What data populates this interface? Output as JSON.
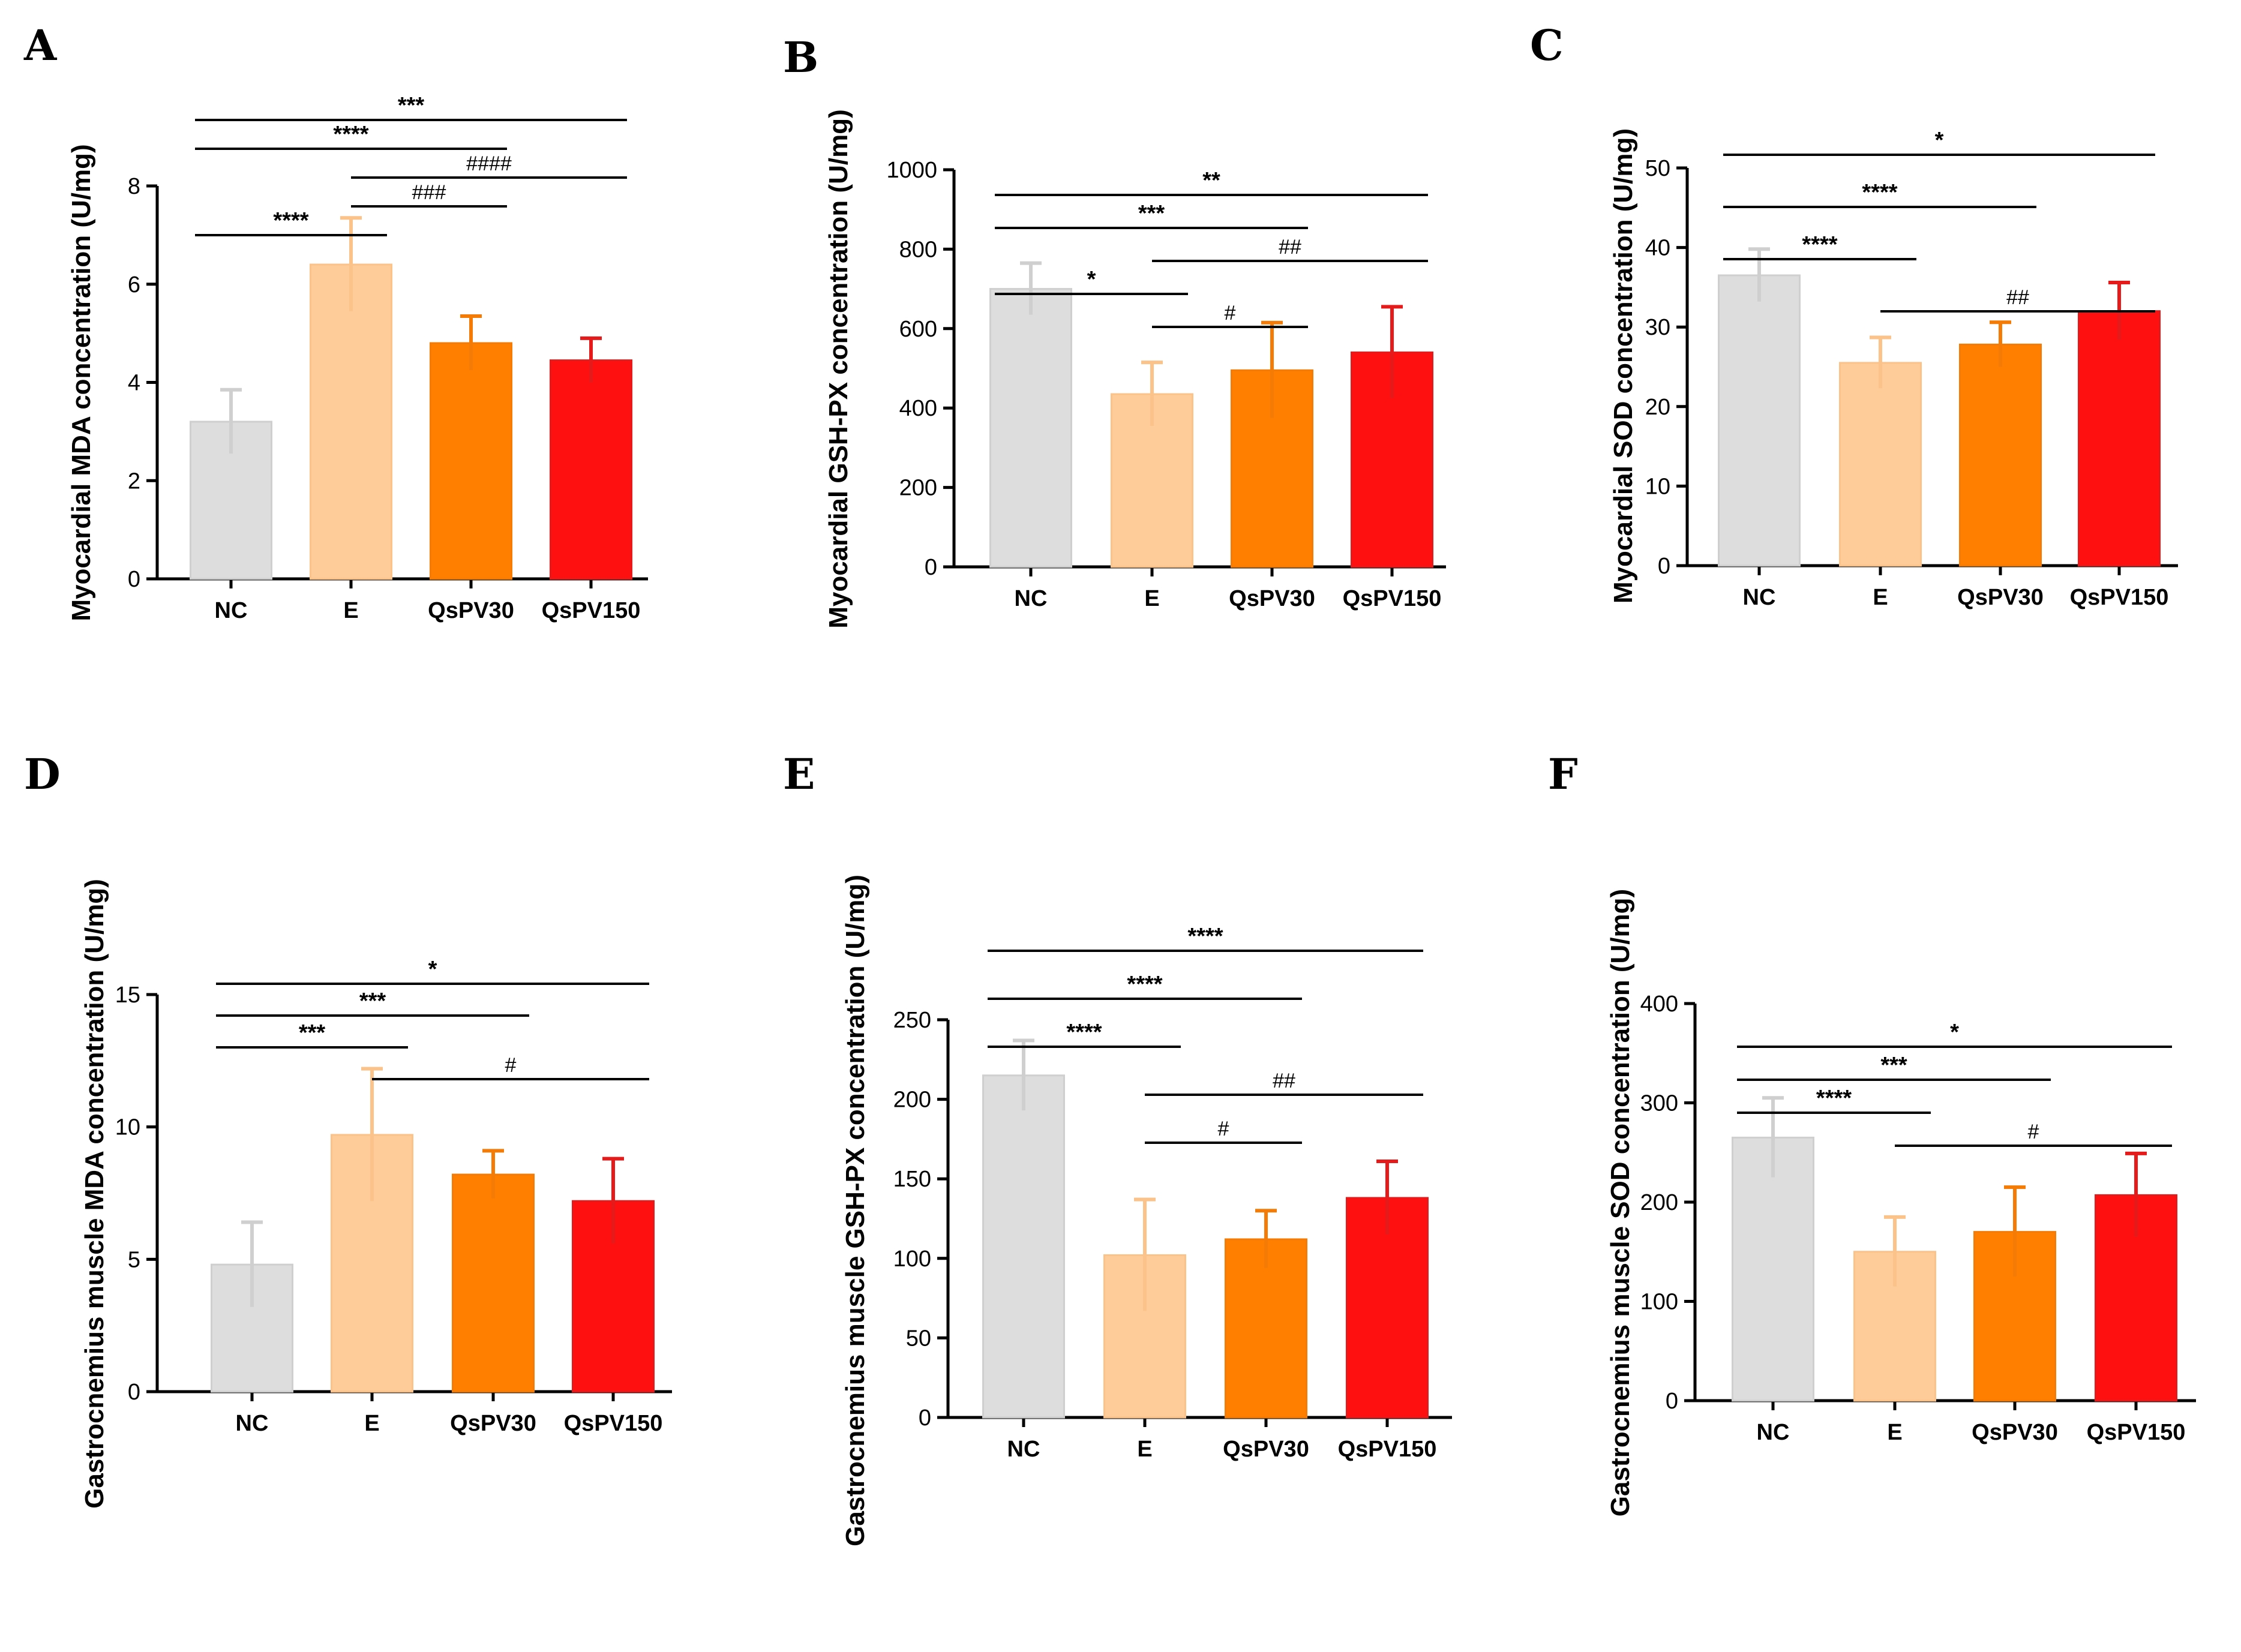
{
  "colors": {
    "NC": "#dddddd",
    "NC_err": "#cfcfcf",
    "E": "#fdcc99",
    "E_err": "#fbc28a",
    "QsPV30": "#ff7f00",
    "QsPV30_err": "#f47b05",
    "QsPV150": "#ff1010",
    "QsPV150_err": "#e51b1b"
  },
  "chart_data": [
    {
      "panel": "A",
      "type": "bar",
      "categories": [
        "NC",
        "E",
        "QsPV30",
        "QsPV150"
      ],
      "values": [
        3.2,
        6.4,
        4.8,
        4.45
      ],
      "errors": [
        0.65,
        0.95,
        0.55,
        0.45
      ],
      "ylabel": "Myocardial MDA concentration (U/mg)",
      "ylim": [
        0,
        8
      ],
      "yticks": [
        0,
        2,
        4,
        6,
        8
      ],
      "comparisons": [
        {
          "from": 0,
          "to": 1,
          "label": "****",
          "kind": "star"
        },
        {
          "from": 1,
          "to": 2,
          "label": "###",
          "kind": "hash"
        },
        {
          "from": 1,
          "to": 3,
          "label": "####",
          "kind": "hash"
        },
        {
          "from": 0,
          "to": 2,
          "label": "****",
          "kind": "star"
        },
        {
          "from": 0,
          "to": 3,
          "label": "***",
          "kind": "star"
        }
      ]
    },
    {
      "panel": "B",
      "type": "bar",
      "categories": [
        "NC",
        "E",
        "QsPV30",
        "QsPV150"
      ],
      "values": [
        700,
        435,
        495,
        540
      ],
      "errors": [
        65,
        80,
        120,
        115
      ],
      "ylabel": "Myocardial GSH-PX concentration (U/mg)",
      "ylim": [
        0,
        1000
      ],
      "yticks": [
        0,
        200,
        400,
        600,
        800,
        1000
      ],
      "comparisons": [
        {
          "from": 1,
          "to": 2,
          "label": "#",
          "kind": "hash"
        },
        {
          "from": 0,
          "to": 1,
          "label": "*",
          "kind": "star"
        },
        {
          "from": 1,
          "to": 3,
          "label": "##",
          "kind": "hash"
        },
        {
          "from": 0,
          "to": 2,
          "label": "***",
          "kind": "star"
        },
        {
          "from": 0,
          "to": 3,
          "label": "**",
          "kind": "star"
        }
      ]
    },
    {
      "panel": "C",
      "type": "bar",
      "categories": [
        "NC",
        "E",
        "QsPV30",
        "QsPV150"
      ],
      "values": [
        36.5,
        25.5,
        27.8,
        32
      ],
      "errors": [
        3.3,
        3.2,
        2.8,
        3.6
      ],
      "ylabel": "Myocardial SOD concentration (U/mg)",
      "ylim": [
        0,
        50
      ],
      "yticks": [
        0,
        10,
        20,
        30,
        40,
        50
      ],
      "comparisons": [
        {
          "from": 1,
          "to": 3,
          "label": "##",
          "kind": "hash"
        },
        {
          "from": 0,
          "to": 1,
          "label": "****",
          "kind": "star"
        },
        {
          "from": 0,
          "to": 2,
          "label": "****",
          "kind": "star"
        },
        {
          "from": 0,
          "to": 3,
          "label": "*",
          "kind": "star"
        }
      ]
    },
    {
      "panel": "D",
      "type": "bar",
      "categories": [
        "NC",
        "E",
        "QsPV30",
        "QsPV150"
      ],
      "values": [
        4.8,
        9.7,
        8.2,
        7.2
      ],
      "errors": [
        1.6,
        2.5,
        0.9,
        1.6
      ],
      "ylabel": "Gastrocnemius muscle MDA concentration (U/mg)",
      "ylim": [
        0,
        15
      ],
      "yticks": [
        0,
        5,
        10,
        15
      ],
      "comparisons": [
        {
          "from": 1,
          "to": 3,
          "label": "#",
          "kind": "hash"
        },
        {
          "from": 0,
          "to": 1,
          "label": "***",
          "kind": "star"
        },
        {
          "from": 0,
          "to": 2,
          "label": "***",
          "kind": "star"
        },
        {
          "from": 0,
          "to": 3,
          "label": "*",
          "kind": "star"
        }
      ]
    },
    {
      "panel": "E",
      "type": "bar",
      "categories": [
        "NC",
        "E",
        "QsPV30",
        "QsPV150"
      ],
      "values": [
        215,
        102,
        112,
        138
      ],
      "errors": [
        22,
        35,
        18,
        23
      ],
      "ylabel": "Gastrocnemius muscle GSH-PX concentration (U/mg)",
      "ylim": [
        0,
        250
      ],
      "yticks": [
        0,
        50,
        100,
        150,
        200,
        250
      ],
      "comparisons": [
        {
          "from": 1,
          "to": 2,
          "label": "#",
          "kind": "hash"
        },
        {
          "from": 1,
          "to": 3,
          "label": "##",
          "kind": "hash"
        },
        {
          "from": 0,
          "to": 1,
          "label": "****",
          "kind": "star"
        },
        {
          "from": 0,
          "to": 2,
          "label": "****",
          "kind": "star"
        },
        {
          "from": 0,
          "to": 3,
          "label": "****",
          "kind": "star"
        }
      ]
    },
    {
      "panel": "F",
      "type": "bar",
      "categories": [
        "NC",
        "E",
        "QsPV30",
        "QsPV150"
      ],
      "values": [
        265,
        150,
        170,
        207
      ],
      "errors": [
        40,
        35,
        45,
        42
      ],
      "ylabel": "Gastrocnemius muscle SOD concentration (U/mg)",
      "ylim": [
        0,
        400
      ],
      "yticks": [
        0,
        100,
        200,
        300,
        400
      ],
      "comparisons": [
        {
          "from": 1,
          "to": 3,
          "label": "#",
          "kind": "hash"
        },
        {
          "from": 0,
          "to": 1,
          "label": "****",
          "kind": "star"
        },
        {
          "from": 0,
          "to": 2,
          "label": "***",
          "kind": "star"
        },
        {
          "from": 0,
          "to": 3,
          "label": "*",
          "kind": "star"
        }
      ]
    }
  ]
}
